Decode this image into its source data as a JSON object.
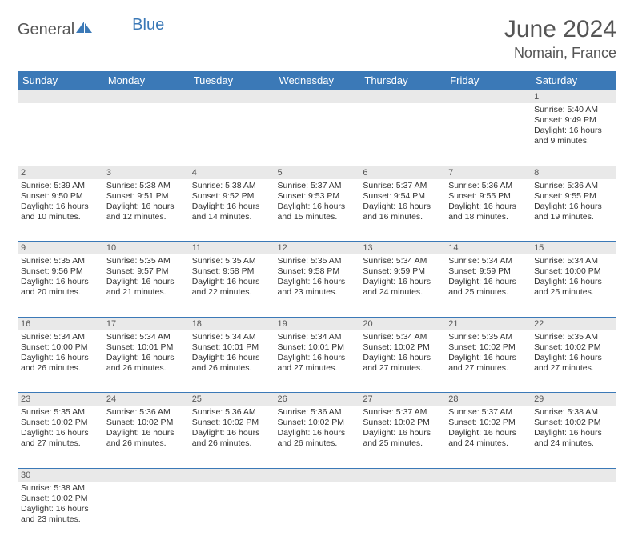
{
  "logo": {
    "part1": "General",
    "part2": "Blue"
  },
  "title": "June 2024",
  "location": "Nomain, France",
  "colors": {
    "header_bg": "#3b79b7",
    "header_text": "#ffffff",
    "daynum_bg": "#e9e9e9",
    "border": "#3b79b7",
    "text": "#333333",
    "title_text": "#555555"
  },
  "dayHeaders": [
    "Sunday",
    "Monday",
    "Tuesday",
    "Wednesday",
    "Thursday",
    "Friday",
    "Saturday"
  ],
  "weeks": [
    {
      "nums": [
        "",
        "",
        "",
        "",
        "",
        "",
        "1"
      ],
      "cells": [
        null,
        null,
        null,
        null,
        null,
        null,
        {
          "sunrise": "Sunrise: 5:40 AM",
          "sunset": "Sunset: 9:49 PM",
          "daylight": "Daylight: 16 hours and 9 minutes."
        }
      ]
    },
    {
      "nums": [
        "2",
        "3",
        "4",
        "5",
        "6",
        "7",
        "8"
      ],
      "cells": [
        {
          "sunrise": "Sunrise: 5:39 AM",
          "sunset": "Sunset: 9:50 PM",
          "daylight": "Daylight: 16 hours and 10 minutes."
        },
        {
          "sunrise": "Sunrise: 5:38 AM",
          "sunset": "Sunset: 9:51 PM",
          "daylight": "Daylight: 16 hours and 12 minutes."
        },
        {
          "sunrise": "Sunrise: 5:38 AM",
          "sunset": "Sunset: 9:52 PM",
          "daylight": "Daylight: 16 hours and 14 minutes."
        },
        {
          "sunrise": "Sunrise: 5:37 AM",
          "sunset": "Sunset: 9:53 PM",
          "daylight": "Daylight: 16 hours and 15 minutes."
        },
        {
          "sunrise": "Sunrise: 5:37 AM",
          "sunset": "Sunset: 9:54 PM",
          "daylight": "Daylight: 16 hours and 16 minutes."
        },
        {
          "sunrise": "Sunrise: 5:36 AM",
          "sunset": "Sunset: 9:55 PM",
          "daylight": "Daylight: 16 hours and 18 minutes."
        },
        {
          "sunrise": "Sunrise: 5:36 AM",
          "sunset": "Sunset: 9:55 PM",
          "daylight": "Daylight: 16 hours and 19 minutes."
        }
      ]
    },
    {
      "nums": [
        "9",
        "10",
        "11",
        "12",
        "13",
        "14",
        "15"
      ],
      "cells": [
        {
          "sunrise": "Sunrise: 5:35 AM",
          "sunset": "Sunset: 9:56 PM",
          "daylight": "Daylight: 16 hours and 20 minutes."
        },
        {
          "sunrise": "Sunrise: 5:35 AM",
          "sunset": "Sunset: 9:57 PM",
          "daylight": "Daylight: 16 hours and 21 minutes."
        },
        {
          "sunrise": "Sunrise: 5:35 AM",
          "sunset": "Sunset: 9:58 PM",
          "daylight": "Daylight: 16 hours and 22 minutes."
        },
        {
          "sunrise": "Sunrise: 5:35 AM",
          "sunset": "Sunset: 9:58 PM",
          "daylight": "Daylight: 16 hours and 23 minutes."
        },
        {
          "sunrise": "Sunrise: 5:34 AM",
          "sunset": "Sunset: 9:59 PM",
          "daylight": "Daylight: 16 hours and 24 minutes."
        },
        {
          "sunrise": "Sunrise: 5:34 AM",
          "sunset": "Sunset: 9:59 PM",
          "daylight": "Daylight: 16 hours and 25 minutes."
        },
        {
          "sunrise": "Sunrise: 5:34 AM",
          "sunset": "Sunset: 10:00 PM",
          "daylight": "Daylight: 16 hours and 25 minutes."
        }
      ]
    },
    {
      "nums": [
        "16",
        "17",
        "18",
        "19",
        "20",
        "21",
        "22"
      ],
      "cells": [
        {
          "sunrise": "Sunrise: 5:34 AM",
          "sunset": "Sunset: 10:00 PM",
          "daylight": "Daylight: 16 hours and 26 minutes."
        },
        {
          "sunrise": "Sunrise: 5:34 AM",
          "sunset": "Sunset: 10:01 PM",
          "daylight": "Daylight: 16 hours and 26 minutes."
        },
        {
          "sunrise": "Sunrise: 5:34 AM",
          "sunset": "Sunset: 10:01 PM",
          "daylight": "Daylight: 16 hours and 26 minutes."
        },
        {
          "sunrise": "Sunrise: 5:34 AM",
          "sunset": "Sunset: 10:01 PM",
          "daylight": "Daylight: 16 hours and 27 minutes."
        },
        {
          "sunrise": "Sunrise: 5:34 AM",
          "sunset": "Sunset: 10:02 PM",
          "daylight": "Daylight: 16 hours and 27 minutes."
        },
        {
          "sunrise": "Sunrise: 5:35 AM",
          "sunset": "Sunset: 10:02 PM",
          "daylight": "Daylight: 16 hours and 27 minutes."
        },
        {
          "sunrise": "Sunrise: 5:35 AM",
          "sunset": "Sunset: 10:02 PM",
          "daylight": "Daylight: 16 hours and 27 minutes."
        }
      ]
    },
    {
      "nums": [
        "23",
        "24",
        "25",
        "26",
        "27",
        "28",
        "29"
      ],
      "cells": [
        {
          "sunrise": "Sunrise: 5:35 AM",
          "sunset": "Sunset: 10:02 PM",
          "daylight": "Daylight: 16 hours and 27 minutes."
        },
        {
          "sunrise": "Sunrise: 5:36 AM",
          "sunset": "Sunset: 10:02 PM",
          "daylight": "Daylight: 16 hours and 26 minutes."
        },
        {
          "sunrise": "Sunrise: 5:36 AM",
          "sunset": "Sunset: 10:02 PM",
          "daylight": "Daylight: 16 hours and 26 minutes."
        },
        {
          "sunrise": "Sunrise: 5:36 AM",
          "sunset": "Sunset: 10:02 PM",
          "daylight": "Daylight: 16 hours and 26 minutes."
        },
        {
          "sunrise": "Sunrise: 5:37 AM",
          "sunset": "Sunset: 10:02 PM",
          "daylight": "Daylight: 16 hours and 25 minutes."
        },
        {
          "sunrise": "Sunrise: 5:37 AM",
          "sunset": "Sunset: 10:02 PM",
          "daylight": "Daylight: 16 hours and 24 minutes."
        },
        {
          "sunrise": "Sunrise: 5:38 AM",
          "sunset": "Sunset: 10:02 PM",
          "daylight": "Daylight: 16 hours and 24 minutes."
        }
      ]
    },
    {
      "nums": [
        "30",
        "",
        "",
        "",
        "",
        "",
        ""
      ],
      "cells": [
        {
          "sunrise": "Sunrise: 5:38 AM",
          "sunset": "Sunset: 10:02 PM",
          "daylight": "Daylight: 16 hours and 23 minutes."
        },
        null,
        null,
        null,
        null,
        null,
        null
      ]
    }
  ]
}
